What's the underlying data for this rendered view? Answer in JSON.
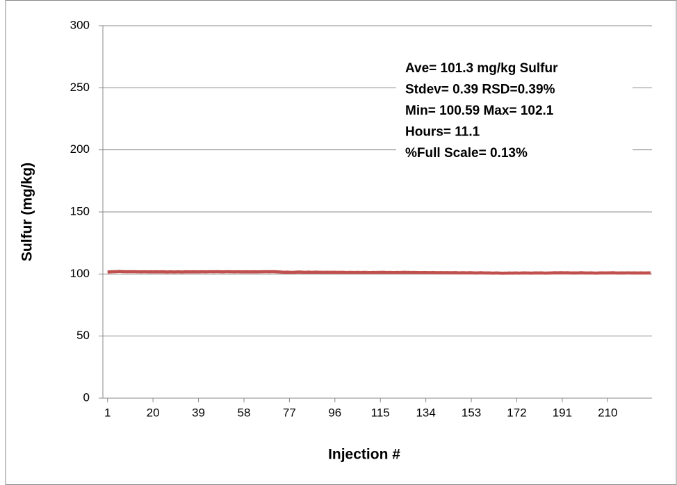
{
  "chart_data": {
    "type": "line",
    "x_label": "Injection #",
    "y_label": "Sulfur (mg/kg)",
    "annotations": [
      "Ave= 101.3 mg/kg Sulfur",
      "Stdev= 0.39  RSD=0.39%",
      "Min= 100.59  Max= 102.1",
      "Hours= 11.1",
      "%Full Scale= 0.13%"
    ],
    "ylim": [
      0,
      300
    ],
    "yticks": [
      0,
      50,
      100,
      150,
      200,
      250,
      300
    ],
    "grid": true,
    "categories": [
      "1",
      null,
      null,
      null,
      null,
      null,
      null,
      null,
      null,
      null,
      null,
      null,
      null,
      null,
      null,
      null,
      null,
      null,
      null,
      "20",
      null,
      null,
      null,
      null,
      null,
      null,
      null,
      null,
      null,
      null,
      null,
      null,
      null,
      null,
      null,
      null,
      null,
      null,
      "39",
      null,
      null,
      null,
      null,
      null,
      null,
      null,
      null,
      null,
      null,
      null,
      null,
      null,
      null,
      null,
      null,
      null,
      null,
      "58",
      null,
      null,
      null,
      null,
      null,
      null,
      null,
      null,
      null,
      null,
      null,
      null,
      null,
      null,
      null,
      null,
      null,
      null,
      "77",
      null,
      null,
      null,
      null,
      null,
      null,
      null,
      null,
      null,
      null,
      null,
      null,
      null,
      null,
      null,
      null,
      null,
      null,
      "96",
      null,
      null,
      null,
      null,
      null,
      null,
      null,
      null,
      null,
      null,
      null,
      null,
      null,
      null,
      null,
      null,
      null,
      null,
      "115",
      null,
      null,
      null,
      null,
      null,
      null,
      null,
      null,
      null,
      null,
      null,
      null,
      null,
      null,
      null,
      null,
      null,
      null,
      "134",
      null,
      null,
      null,
      null,
      null,
      null,
      null,
      null,
      null,
      null,
      null,
      null,
      null,
      null,
      null,
      null,
      null,
      null,
      "153",
      null,
      null,
      null,
      null,
      null,
      null,
      null,
      null,
      null,
      null,
      null,
      null,
      null,
      null,
      null,
      null,
      null,
      null,
      "172",
      null,
      null,
      null,
      null,
      null,
      null,
      null,
      null,
      null,
      null,
      null,
      null,
      null,
      null,
      null,
      null,
      null,
      null,
      "191",
      null,
      null,
      null,
      null,
      null,
      null,
      null,
      null,
      null,
      null,
      null,
      null,
      null,
      null,
      null,
      null,
      null,
      null,
      "210",
      null,
      null,
      null,
      null,
      null,
      null,
      null,
      null,
      null,
      null,
      null,
      null,
      null,
      null,
      null,
      null,
      null,
      null
    ],
    "series": [
      {
        "color": "#c0504d",
        "values": [
          101.5,
          101.7,
          101.8,
          101.9,
          101.9,
          102.1,
          101.9,
          101.9,
          101.8,
          101.9,
          101.8,
          101.9,
          101.8,
          101.8,
          101.7,
          101.8,
          101.8,
          101.7,
          101.8,
          101.7,
          101.8,
          101.7,
          101.7,
          101.8,
          101.7,
          101.6,
          101.7,
          101.7,
          101.6,
          101.7,
          101.7,
          101.6,
          101.7,
          101.8,
          101.7,
          101.7,
          101.8,
          101.7,
          101.7,
          101.8,
          101.8,
          101.7,
          101.8,
          101.9,
          101.8,
          101.8,
          101.9,
          101.8,
          101.7,
          101.8,
          101.9,
          101.8,
          101.8,
          101.7,
          101.8,
          101.8,
          101.7,
          101.7,
          101.8,
          101.7,
          101.7,
          101.8,
          101.7,
          101.7,
          101.8,
          101.8,
          101.9,
          101.8,
          101.8,
          101.9,
          101.8,
          101.7,
          101.6,
          101.5,
          101.4,
          101.5,
          101.4,
          101.3,
          101.4,
          101.5,
          101.6,
          101.5,
          101.4,
          101.4,
          101.5,
          101.4,
          101.4,
          101.5,
          101.4,
          101.4,
          101.3,
          101.4,
          101.4,
          101.3,
          101.4,
          101.4,
          101.3,
          101.3,
          101.4,
          101.3,
          101.2,
          101.3,
          101.3,
          101.2,
          101.3,
          101.3,
          101.2,
          101.3,
          101.3,
          101.2,
          101.2,
          101.3,
          101.2,
          101.3,
          101.3,
          101.4,
          101.3,
          101.2,
          101.3,
          101.2,
          101.2,
          101.3,
          101.2,
          101.3,
          101.4,
          101.3,
          101.3,
          101.2,
          101.3,
          101.2,
          101.2,
          101.1,
          101.2,
          101.2,
          101.1,
          101.1,
          101.2,
          101.1,
          101.0,
          101.1,
          101.1,
          101.0,
          101.1,
          101.0,
          101.0,
          101.1,
          101.0,
          100.9,
          101.0,
          101.0,
          100.9,
          101.0,
          101.0,
          100.9,
          100.8,
          100.9,
          101.0,
          100.9,
          100.8,
          100.9,
          100.8,
          100.7,
          100.8,
          100.8,
          100.7,
          100.6,
          100.7,
          100.7,
          100.8,
          100.7,
          100.8,
          100.8,
          100.7,
          100.8,
          100.9,
          100.8,
          100.8,
          100.7,
          100.8,
          100.9,
          100.8,
          100.9,
          100.8,
          100.7,
          100.8,
          100.8,
          100.9,
          101.0,
          100.9,
          101.0,
          101.0,
          100.9,
          101.0,
          100.9,
          100.8,
          100.9,
          100.8,
          100.9,
          101.0,
          100.9,
          100.8,
          100.8,
          100.9,
          100.8,
          100.7,
          100.8,
          100.9,
          100.9,
          100.8,
          100.9,
          100.9,
          101.0,
          100.9,
          100.8,
          100.8,
          100.9,
          100.8,
          100.9,
          100.9,
          100.8,
          100.9,
          100.8,
          100.8,
          100.9,
          100.8,
          100.8,
          100.9,
          100.8
        ]
      }
    ]
  }
}
